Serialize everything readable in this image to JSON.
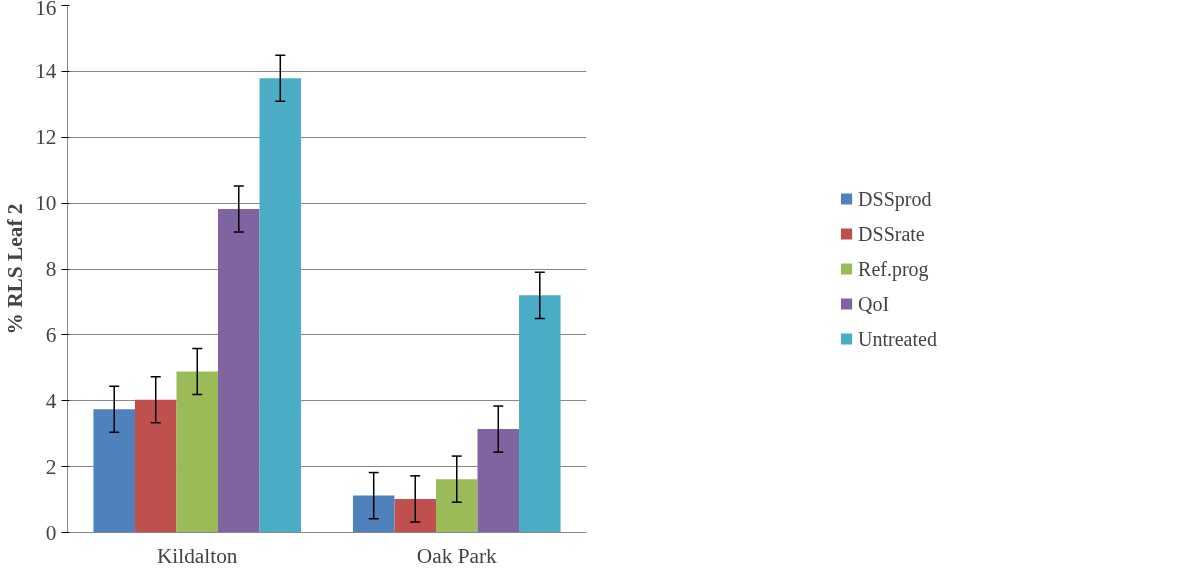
{
  "chart_data": {
    "type": "bar",
    "ylabel": "% RLS Leaf 2",
    "categories": [
      "Kildalton",
      "Oak Park"
    ],
    "series": [
      {
        "name": "DSSprod",
        "color": "#4f81bd",
        "values": [
          3.74,
          1.12
        ],
        "errors": [
          0.7,
          0.7
        ]
      },
      {
        "name": "DSSrate",
        "color": "#c0504d",
        "values": [
          4.03,
          1.02
        ],
        "errors": [
          0.7,
          0.7
        ]
      },
      {
        "name": "Ref.prog",
        "color": "#9bbb59",
        "values": [
          4.89,
          1.62
        ],
        "errors": [
          0.7,
          0.7
        ]
      },
      {
        "name": "QoI",
        "color": "#8064a2",
        "values": [
          9.82,
          3.14
        ],
        "errors": [
          0.7,
          0.7
        ]
      },
      {
        "name": "Untreated",
        "color": "#4bacc6",
        "values": [
          13.79,
          7.2
        ],
        "errors": [
          0.7,
          0.7
        ]
      }
    ],
    "ylim": [
      0,
      16
    ],
    "yticks": [
      0,
      2,
      4,
      6,
      8,
      10,
      12,
      14,
      16
    ],
    "grid": "y",
    "legend": "right"
  }
}
